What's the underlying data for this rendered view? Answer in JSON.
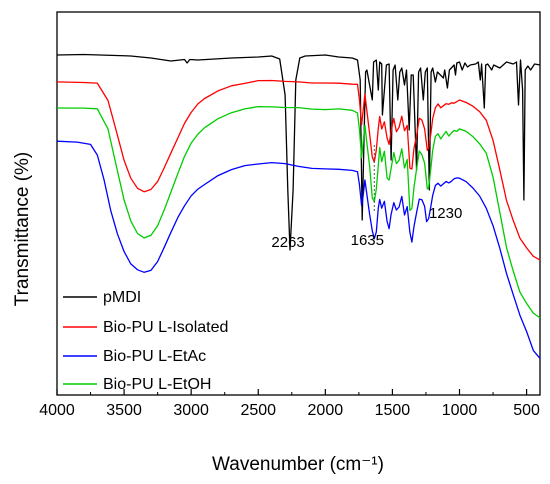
{
  "chart_data": {
    "type": "line",
    "xlabel": "Wavenumber (cm⁻¹)",
    "ylabel": "Transmittance (%)",
    "xlim": [
      4000,
      400
    ],
    "x_reversed": true,
    "y_ticks_shown": false,
    "xticks": [
      4000,
      3500,
      3000,
      2500,
      2000,
      1500,
      1000,
      500
    ],
    "xtick_labels": [
      "4000",
      "3500",
      "3000",
      "2500",
      "2000",
      "1500",
      "1000",
      "500"
    ],
    "legend_position": "bottom-left",
    "grid": false,
    "annotations": [
      {
        "text": "2263",
        "x": 2263
      },
      {
        "text": "1635",
        "x": 1635
      },
      {
        "text": "1230",
        "x": 1230
      }
    ],
    "series": [
      {
        "name": "pMDI",
        "color": "#000000"
      },
      {
        "name": "Bio-PU L-Isolated",
        "color": "#ff0000"
      },
      {
        "name": "Bio-PU L-EtAc",
        "color": "#0000ff"
      },
      {
        "name": "Bio-PU L-EtOH",
        "color": "#00cc00"
      }
    ]
  }
}
